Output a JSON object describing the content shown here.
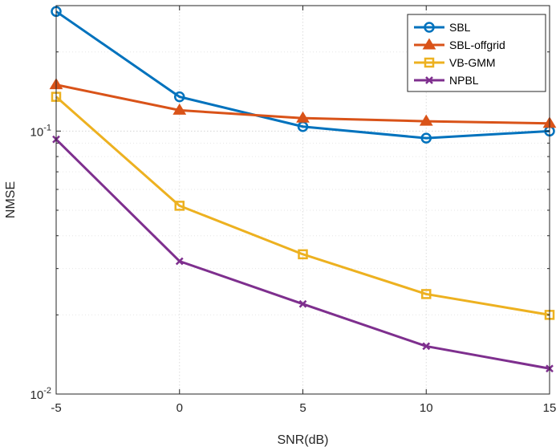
{
  "chart_data": {
    "type": "line",
    "xlabel": "SNR(dB)",
    "ylabel": "NMSE",
    "x": [
      -5,
      0,
      5,
      10,
      15
    ],
    "xlim": [
      -5,
      15
    ],
    "xticks": [
      "-5",
      "0",
      "5",
      "10",
      "15"
    ],
    "ylim": [
      0.01,
      0.3
    ],
    "yscale": "log",
    "yticks": [
      {
        "value": 0.1,
        "base": "10",
        "exp": "-1"
      },
      {
        "value": 0.01,
        "base": "10",
        "exp": "-2"
      }
    ],
    "grid": true,
    "legend_position": "top-right",
    "series": [
      {
        "name": "SBL",
        "color": "#0072BD",
        "marker": "circle",
        "values": [
          0.285,
          0.135,
          0.104,
          0.094,
          0.1
        ]
      },
      {
        "name": "SBL-offgrid",
        "color": "#D95319",
        "marker": "triangle",
        "values": [
          0.15,
          0.12,
          0.112,
          0.109,
          0.107
        ]
      },
      {
        "name": "VB-GMM",
        "color": "#EDB120",
        "marker": "square",
        "values": [
          0.135,
          0.052,
          0.034,
          0.024,
          0.02
        ]
      },
      {
        "name": "NPBL",
        "color": "#7E2F8E",
        "marker": "x",
        "values": [
          0.093,
          0.032,
          0.022,
          0.0152,
          0.0125
        ]
      }
    ]
  }
}
